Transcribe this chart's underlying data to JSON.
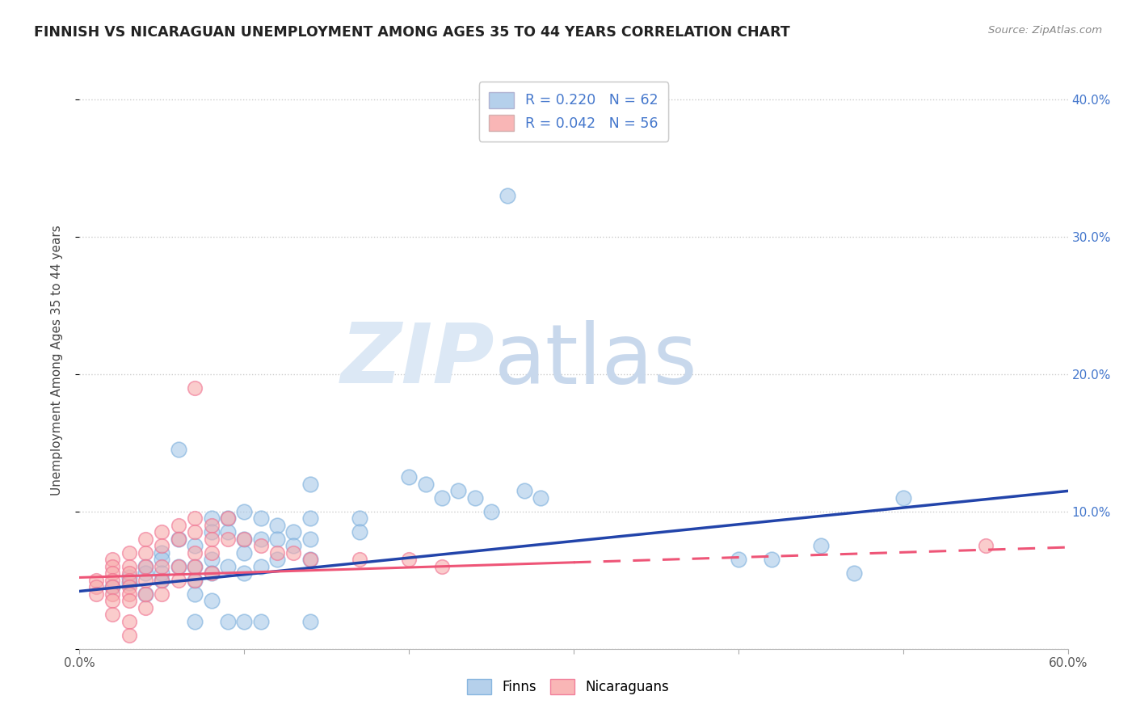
{
  "title": "FINNISH VS NICARAGUAN UNEMPLOYMENT AMONG AGES 35 TO 44 YEARS CORRELATION CHART",
  "source": "Source: ZipAtlas.com",
  "ylabel": "Unemployment Among Ages 35 to 44 years",
  "xlim": [
    0.0,
    0.6
  ],
  "ylim": [
    0.0,
    0.42
  ],
  "xticks": [
    0.0,
    0.1,
    0.2,
    0.3,
    0.4,
    0.5,
    0.6
  ],
  "xticklabels_shown": [
    "0.0%",
    "",
    "",
    "",
    "",
    "",
    "60.0%"
  ],
  "yticks": [
    0.0,
    0.1,
    0.2,
    0.3,
    0.4
  ],
  "yticklabels_right": [
    "",
    "10.0%",
    "20.0%",
    "30.0%",
    "40.0%"
  ],
  "legend_entries": [
    {
      "label": "R = 0.220   N = 62",
      "color": "#a8c8e8"
    },
    {
      "label": "R = 0.042   N = 56",
      "color": "#f8aaaa"
    }
  ],
  "finns_color": "#a8c8e8",
  "finns_edge_color": "#7aaedc",
  "nicaraguans_color": "#f8aaaa",
  "nicaraguans_edge_color": "#f07090",
  "finns_line_color": "#2244aa",
  "nicaraguans_line_color": "#ee5577",
  "right_axis_color": "#4477cc",
  "watermark_zip": "ZIP",
  "watermark_atlas": "atlas",
  "watermark_color": "#dce8f5",
  "background_color": "#ffffff",
  "grid_color": "#cccccc",
  "finns_scatter": [
    [
      0.02,
      0.045
    ],
    [
      0.03,
      0.048
    ],
    [
      0.03,
      0.052
    ],
    [
      0.04,
      0.06
    ],
    [
      0.04,
      0.055
    ],
    [
      0.04,
      0.04
    ],
    [
      0.05,
      0.07
    ],
    [
      0.05,
      0.065
    ],
    [
      0.05,
      0.05
    ],
    [
      0.05,
      0.055
    ],
    [
      0.06,
      0.08
    ],
    [
      0.06,
      0.06
    ],
    [
      0.06,
      0.145
    ],
    [
      0.07,
      0.075
    ],
    [
      0.07,
      0.06
    ],
    [
      0.07,
      0.05
    ],
    [
      0.07,
      0.04
    ],
    [
      0.07,
      0.02
    ],
    [
      0.08,
      0.095
    ],
    [
      0.08,
      0.085
    ],
    [
      0.08,
      0.065
    ],
    [
      0.08,
      0.055
    ],
    [
      0.08,
      0.035
    ],
    [
      0.09,
      0.095
    ],
    [
      0.09,
      0.085
    ],
    [
      0.09,
      0.06
    ],
    [
      0.09,
      0.02
    ],
    [
      0.1,
      0.1
    ],
    [
      0.1,
      0.08
    ],
    [
      0.1,
      0.07
    ],
    [
      0.1,
      0.055
    ],
    [
      0.1,
      0.02
    ],
    [
      0.11,
      0.095
    ],
    [
      0.11,
      0.08
    ],
    [
      0.11,
      0.06
    ],
    [
      0.11,
      0.02
    ],
    [
      0.12,
      0.09
    ],
    [
      0.12,
      0.08
    ],
    [
      0.12,
      0.065
    ],
    [
      0.13,
      0.085
    ],
    [
      0.13,
      0.075
    ],
    [
      0.14,
      0.12
    ],
    [
      0.14,
      0.095
    ],
    [
      0.14,
      0.08
    ],
    [
      0.14,
      0.065
    ],
    [
      0.14,
      0.02
    ],
    [
      0.17,
      0.095
    ],
    [
      0.17,
      0.085
    ],
    [
      0.2,
      0.125
    ],
    [
      0.21,
      0.12
    ],
    [
      0.22,
      0.11
    ],
    [
      0.23,
      0.115
    ],
    [
      0.24,
      0.11
    ],
    [
      0.25,
      0.1
    ],
    [
      0.26,
      0.33
    ],
    [
      0.27,
      0.115
    ],
    [
      0.28,
      0.11
    ],
    [
      0.4,
      0.065
    ],
    [
      0.42,
      0.065
    ],
    [
      0.45,
      0.075
    ],
    [
      0.47,
      0.055
    ],
    [
      0.5,
      0.11
    ]
  ],
  "nicaraguans_scatter": [
    [
      0.01,
      0.05
    ],
    [
      0.01,
      0.045
    ],
    [
      0.01,
      0.04
    ],
    [
      0.02,
      0.065
    ],
    [
      0.02,
      0.06
    ],
    [
      0.02,
      0.055
    ],
    [
      0.02,
      0.05
    ],
    [
      0.02,
      0.045
    ],
    [
      0.02,
      0.04
    ],
    [
      0.02,
      0.035
    ],
    [
      0.02,
      0.025
    ],
    [
      0.03,
      0.07
    ],
    [
      0.03,
      0.06
    ],
    [
      0.03,
      0.055
    ],
    [
      0.03,
      0.05
    ],
    [
      0.03,
      0.045
    ],
    [
      0.03,
      0.04
    ],
    [
      0.03,
      0.035
    ],
    [
      0.03,
      0.02
    ],
    [
      0.03,
      0.01
    ],
    [
      0.04,
      0.08
    ],
    [
      0.04,
      0.07
    ],
    [
      0.04,
      0.06
    ],
    [
      0.04,
      0.05
    ],
    [
      0.04,
      0.04
    ],
    [
      0.04,
      0.03
    ],
    [
      0.05,
      0.085
    ],
    [
      0.05,
      0.075
    ],
    [
      0.05,
      0.06
    ],
    [
      0.05,
      0.05
    ],
    [
      0.05,
      0.04
    ],
    [
      0.06,
      0.09
    ],
    [
      0.06,
      0.08
    ],
    [
      0.06,
      0.06
    ],
    [
      0.06,
      0.05
    ],
    [
      0.07,
      0.19
    ],
    [
      0.07,
      0.095
    ],
    [
      0.07,
      0.085
    ],
    [
      0.07,
      0.07
    ],
    [
      0.07,
      0.06
    ],
    [
      0.07,
      0.05
    ],
    [
      0.08,
      0.09
    ],
    [
      0.08,
      0.08
    ],
    [
      0.08,
      0.07
    ],
    [
      0.08,
      0.055
    ],
    [
      0.09,
      0.095
    ],
    [
      0.09,
      0.08
    ],
    [
      0.1,
      0.08
    ],
    [
      0.11,
      0.075
    ],
    [
      0.12,
      0.07
    ],
    [
      0.13,
      0.07
    ],
    [
      0.14,
      0.065
    ],
    [
      0.17,
      0.065
    ],
    [
      0.2,
      0.065
    ],
    [
      0.22,
      0.06
    ],
    [
      0.55,
      0.075
    ]
  ],
  "finns_trendline": [
    [
      0.0,
      0.042
    ],
    [
      0.6,
      0.115
    ]
  ],
  "nicaraguans_trendline_solid": [
    [
      0.0,
      0.052
    ],
    [
      0.3,
      0.063
    ]
  ],
  "nicaraguans_trendline_dashed": [
    [
      0.3,
      0.063
    ],
    [
      0.6,
      0.074
    ]
  ]
}
